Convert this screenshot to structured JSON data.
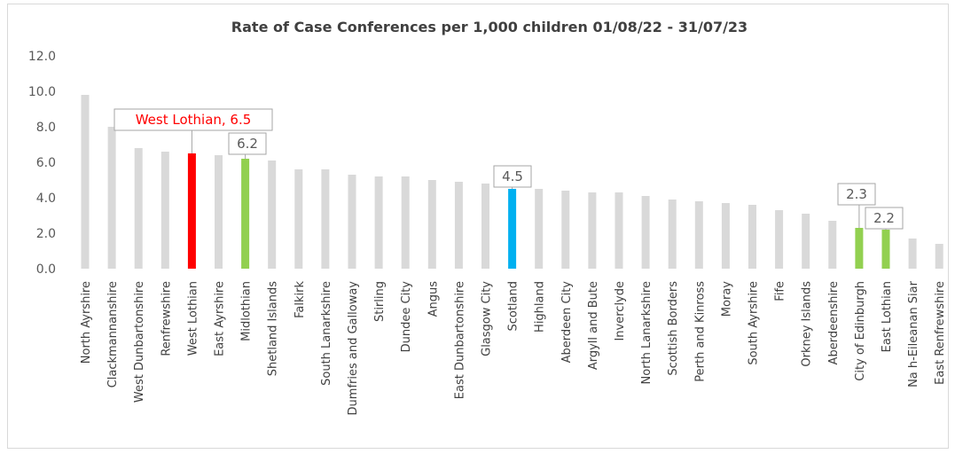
{
  "chart_data": {
    "type": "bar",
    "title": "Rate of Case Conferences per 1,000 children 01/08/22 - 31/07/23",
    "xlabel": "",
    "ylabel": "",
    "ylim": [
      0,
      12
    ],
    "yticks": [
      "0.0",
      "2.0",
      "4.0",
      "6.0",
      "8.0",
      "10.0",
      "12.0"
    ],
    "grid": false,
    "categories": [
      "North Ayrshire",
      "Clackmannanshire",
      "West Dunbartonshire",
      "Renfrewshire",
      "West Lothian",
      "East Ayrshire",
      "Midlothian",
      "Shetland Islands",
      "Falkirk",
      "South Lanarkshire",
      "Dumfries and Galloway",
      "Stirling",
      "Dundee City",
      "Angus",
      "East Dunbartonshire",
      "Glasgow City",
      "Scotland",
      "Highland",
      "Aberdeen City",
      "Argyll and Bute",
      "Inverclyde",
      "North Lanarkshire",
      "Scottish Borders",
      "Perth and Kinross",
      "Moray",
      "South Ayrshire",
      "Fife",
      "Orkney Islands",
      "Aberdeenshire",
      "City of Edinburgh",
      "East Lothian",
      "Na h-Eileanan Siar",
      "East Renfrewshire"
    ],
    "values": [
      9.8,
      8.0,
      6.8,
      6.6,
      6.5,
      6.4,
      6.2,
      6.1,
      5.6,
      5.6,
      5.3,
      5.2,
      5.2,
      5.0,
      4.9,
      4.8,
      4.5,
      4.5,
      4.4,
      4.3,
      4.3,
      4.1,
      3.9,
      3.8,
      3.7,
      3.6,
      3.3,
      3.1,
      2.7,
      2.3,
      2.2,
      1.7,
      1.4
    ],
    "colors": {
      "default": "#d9d9d9",
      "West Lothian": "#ff0000",
      "Midlothian": "#92d050",
      "Scotland": "#00b0f0",
      "City of Edinburgh": "#92d050",
      "East Lothian": "#92d050"
    },
    "annotations": [
      {
        "category": "West Lothian",
        "text": "West Lothian, 6.5",
        "color": "#ff0000"
      },
      {
        "category": "Midlothian",
        "text": "6.2",
        "color": "#595959"
      },
      {
        "category": "Scotland",
        "text": "4.5",
        "color": "#595959"
      },
      {
        "category": "City of Edinburgh",
        "text": "2.3",
        "color": "#595959"
      },
      {
        "category": "East Lothian",
        "text": "2.2",
        "color": "#595959"
      }
    ]
  }
}
